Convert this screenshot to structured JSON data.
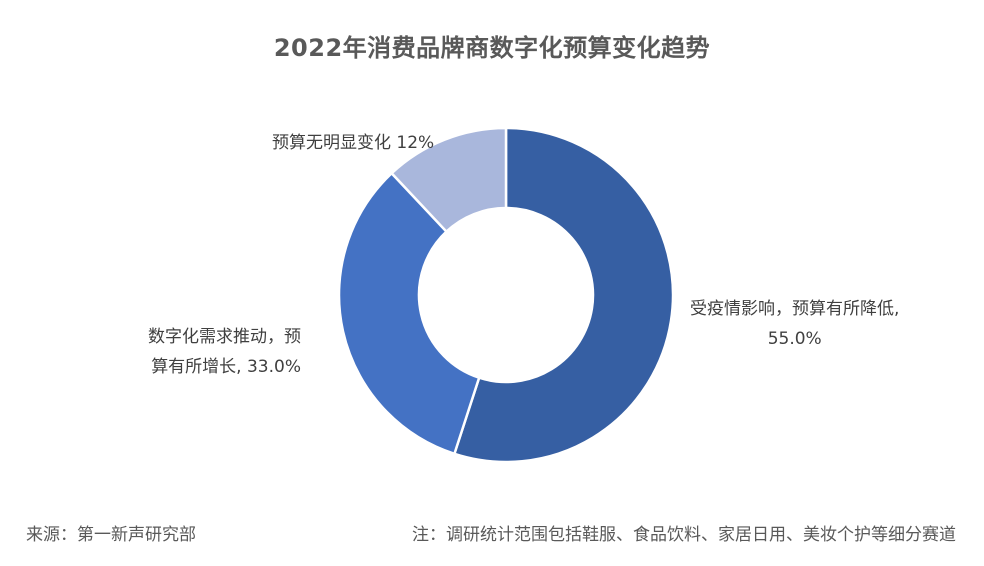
{
  "chart_data": {
    "type": "pie",
    "variant": "donut",
    "title": "2022年消费品牌商数字化预算变化趋势",
    "slices": [
      {
        "label_lines": [
          "受疫情影响，预算有所降低,",
          "55.0%"
        ],
        "value": 55.0,
        "color": "#365fa3"
      },
      {
        "label_lines": [
          "数字化需求推动，预",
          "算有所增长, 33.0%"
        ],
        "value": 33.0,
        "color": "#4472c4"
      },
      {
        "label_lines": [
          "预算无明显变化 12%"
        ],
        "value": 12.0,
        "color": "#a9b7dc"
      }
    ],
    "legend": "none"
  },
  "footer": {
    "source": "来源：第一新声研究部",
    "note": "注：调研统计范围包括鞋服、食品饮料、家居日用、美妆个护等细分赛道"
  }
}
